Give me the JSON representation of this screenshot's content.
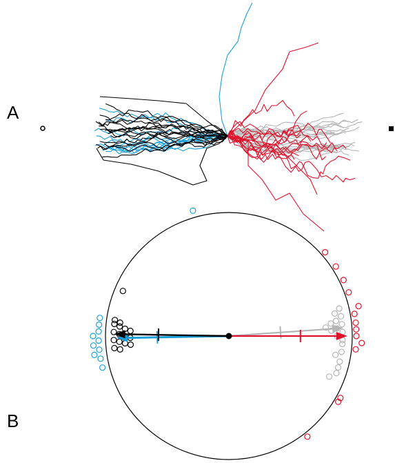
{
  "panels": {
    "a": {
      "label": "A"
    },
    "b": {
      "label": "B"
    }
  },
  "colors": {
    "blue": "#1a9fd9",
    "black": "#000000",
    "red": "#e0112b",
    "gray": "#b4b4b4"
  },
  "panel_a": {
    "description_free": true,
    "groups": [
      {
        "key": "black",
        "color_key": "black",
        "side": "left",
        "count": 16
      },
      {
        "key": "blue",
        "color_key": "blue",
        "side": "left",
        "count": 12
      },
      {
        "key": "gray",
        "color_key": "gray",
        "side": "right",
        "count": 22
      },
      {
        "key": "red",
        "color_key": "red",
        "side": "right",
        "count": 14
      }
    ],
    "left_marker_icon": "open-circle-icon",
    "right_marker_icon": "filled-square-icon"
  },
  "panel_b": {
    "vectors": [
      {
        "key": "blue",
        "color_key": "blue",
        "angle_deg": 181,
        "length": 0.91,
        "tick": 0.58
      },
      {
        "key": "black",
        "color_key": "black",
        "angle_deg": 179,
        "length": 0.93,
        "tick": 0.57
      },
      {
        "key": "gray",
        "color_key": "gray",
        "angle_deg": 4,
        "length": 0.93,
        "tick": 0.42
      },
      {
        "key": "red",
        "color_key": "red",
        "angle_deg": 0,
        "length": 0.96,
        "tick": 0.58
      }
    ],
    "points": {
      "black": [
        172,
        173,
        174,
        175,
        176,
        177,
        178,
        179,
        180,
        181,
        182,
        183,
        184,
        185,
        186,
        187,
        157
      ],
      "blue": [
        172,
        175,
        178,
        180,
        182,
        184,
        186,
        188,
        190,
        194,
        106
      ],
      "gray": [
        -4,
        -2,
        0,
        2,
        4,
        6,
        8,
        10,
        12,
        14,
        3,
        -8,
        -10,
        -13,
        -16,
        -19,
        -22,
        5,
        7
      ],
      "red": [
        -6,
        -3,
        0,
        3,
        6,
        10,
        13,
        20,
        26,
        33,
        -29,
        -31,
        41,
        -52
      ]
    }
  }
}
